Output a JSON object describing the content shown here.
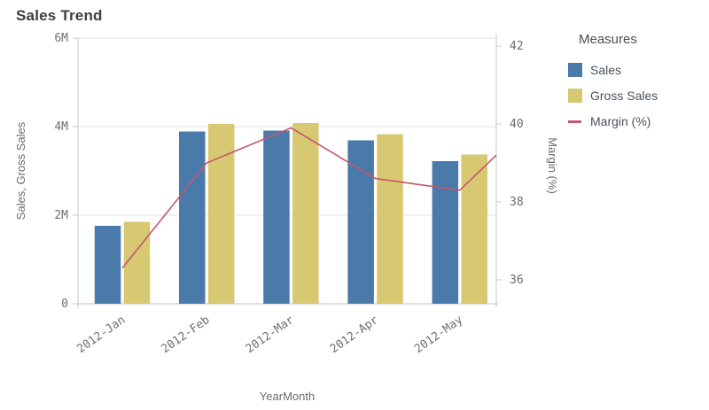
{
  "title": "Sales Trend",
  "legend": {
    "title": "Measures",
    "items": [
      {
        "label": "Sales",
        "color": "#4a7aa9",
        "type": "square"
      },
      {
        "label": "Gross Sales",
        "color": "#d9c872",
        "type": "square"
      },
      {
        "label": "Margin (%)",
        "color": "#c5576f",
        "type": "line"
      }
    ]
  },
  "chart_data": {
    "type": "combo",
    "title": "Sales Trend",
    "categories": [
      "2012-Jan",
      "2012-Feb",
      "2012-Mar",
      "2012-Apr",
      "2012-May"
    ],
    "series": [
      {
        "name": "Sales",
        "type": "bar",
        "axis": "left",
        "color": "#4a7aa9",
        "values_m": [
          1.76,
          3.89,
          3.91,
          3.69,
          3.22
        ]
      },
      {
        "name": "Gross Sales",
        "type": "bar",
        "axis": "left",
        "color": "#d9c872",
        "values_m": [
          1.85,
          4.06,
          4.08,
          3.83,
          3.37
        ]
      },
      {
        "name": "Margin (%)",
        "type": "line",
        "axis": "right",
        "color": "#c5576f",
        "values_pct": [
          36.3,
          39.0,
          39.9,
          38.6,
          38.3
        ],
        "edge_value_pct": 39.2
      }
    ],
    "left_axis": {
      "label": "Sales, Gross Sales",
      "range_m": [
        0,
        6
      ],
      "tick_values": [
        0,
        2,
        4,
        6
      ],
      "tick_labels": [
        "0",
        "2M",
        "4M",
        "6M"
      ]
    },
    "right_axis": {
      "label": "Margin (%)",
      "range_pct": [
        36,
        42
      ],
      "tick_values": [
        36,
        38,
        40,
        42
      ],
      "tick_labels": [
        "36",
        "38",
        "40",
        "42"
      ]
    },
    "x_axis": {
      "label": "YearMonth"
    },
    "grid": true,
    "legend_position": "right"
  }
}
